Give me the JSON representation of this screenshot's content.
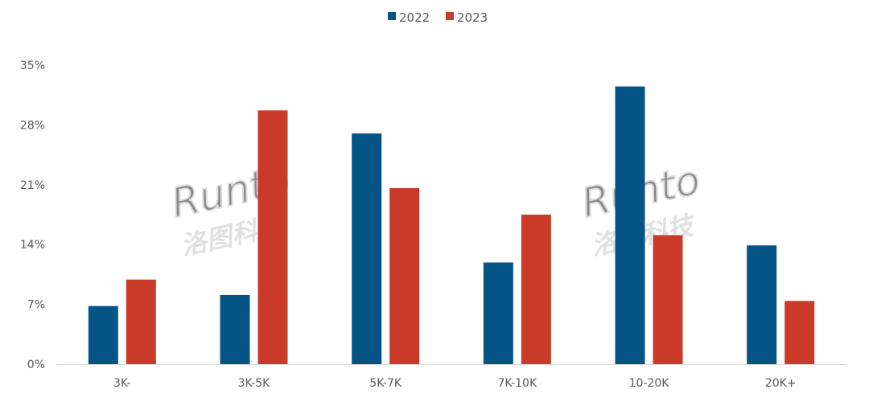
{
  "chart_data": {
    "type": "bar",
    "title": "",
    "xlabel": "",
    "ylabel": "",
    "categories": [
      "3K-",
      "3K-5K",
      "5K-7K",
      "7K-10K",
      "10-20K",
      "20K+"
    ],
    "series": [
      {
        "name": "2022",
        "color": "#045486",
        "values": [
          6.8,
          8.1,
          27.0,
          11.9,
          32.5,
          13.9
        ]
      },
      {
        "name": "2023",
        "color": "#C93A28",
        "values": [
          9.9,
          29.7,
          20.6,
          17.5,
          15.1,
          7.4
        ]
      }
    ],
    "ylim": [
      0,
      35
    ],
    "yticks": [
      0,
      7,
      14,
      21,
      28,
      35
    ],
    "ytick_labels": [
      "0%",
      "7%",
      "14%",
      "21%",
      "28%",
      "35%"
    ],
    "grid": false,
    "legend_position": "top-center",
    "watermark": "Runto 洛图科技"
  }
}
